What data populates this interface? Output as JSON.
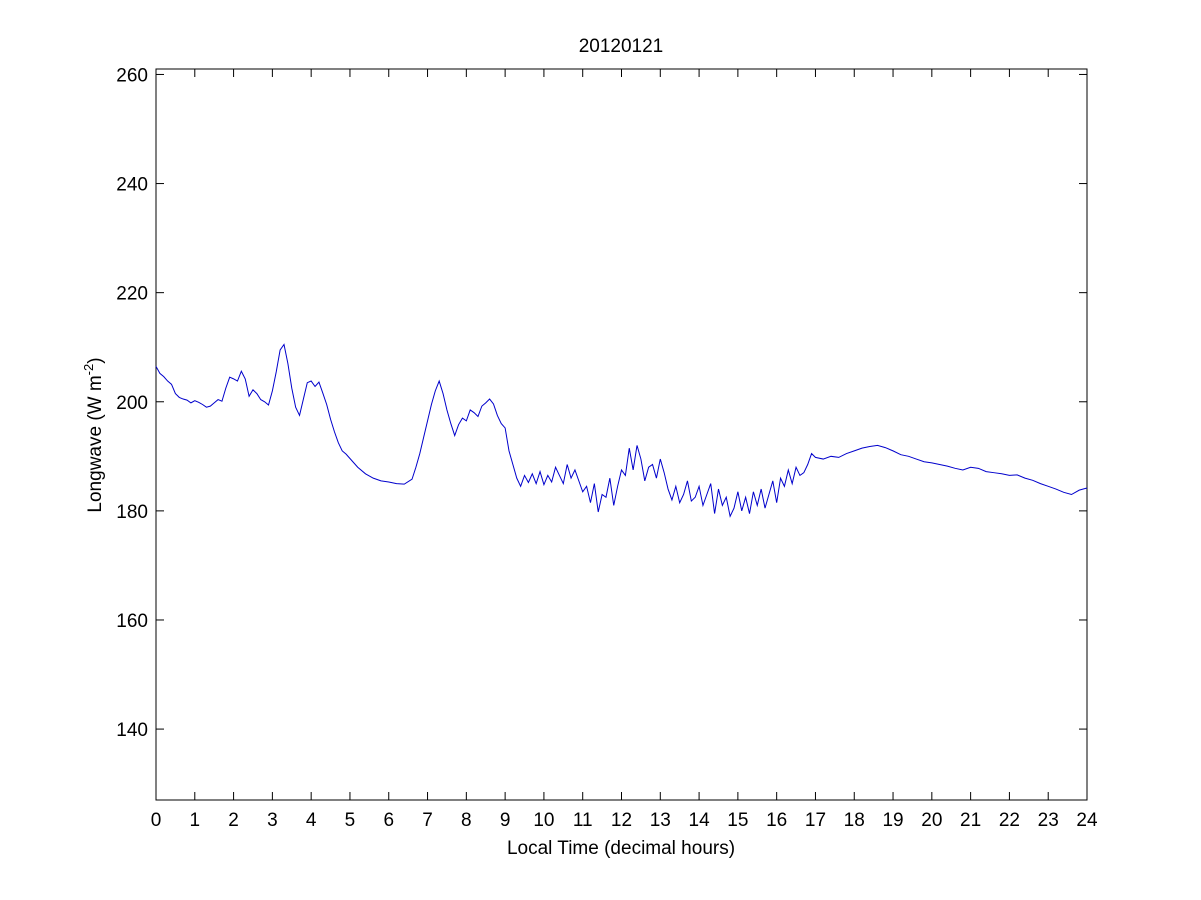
{
  "chart_data": {
    "type": "line",
    "title": "20120121",
    "xlabel": "Local Time (decimal hours)",
    "ylabel": {
      "prefix": "Longwave (W m",
      "sup": "-2",
      "suffix": ")"
    },
    "xlim": [
      0,
      24
    ],
    "ylim": [
      127,
      261
    ],
    "xticks": [
      0,
      1,
      2,
      3,
      4,
      5,
      6,
      7,
      8,
      9,
      10,
      11,
      12,
      13,
      14,
      15,
      16,
      17,
      18,
      19,
      20,
      21,
      22,
      23,
      24
    ],
    "yticks": [
      140,
      160,
      180,
      200,
      220,
      240,
      260
    ],
    "grid": false,
    "line_color": "#0000cc",
    "series": [
      {
        "x": [
          0,
          0.1,
          0.2,
          0.3,
          0.4,
          0.5,
          0.6,
          0.7,
          0.8,
          0.9,
          1.0,
          1.1,
          1.2,
          1.3,
          1.4,
          1.5,
          1.6,
          1.7,
          1.8,
          1.9,
          2.0,
          2.1,
          2.2,
          2.3,
          2.4,
          2.5,
          2.6,
          2.7,
          2.8,
          2.9,
          3.0,
          3.1,
          3.2,
          3.3,
          3.4,
          3.5,
          3.6,
          3.7,
          3.8,
          3.9,
          4.0,
          4.1,
          4.2,
          4.3,
          4.4,
          4.5,
          4.6,
          4.7,
          4.8,
          4.9,
          5.0,
          5.2,
          5.4,
          5.6,
          5.8,
          6.0,
          6.2,
          6.4,
          6.6,
          6.7,
          6.8,
          6.9,
          7.0,
          7.1,
          7.2,
          7.3,
          7.4,
          7.5,
          7.6,
          7.7,
          7.8,
          7.9,
          8.0,
          8.1,
          8.2,
          8.3,
          8.4,
          8.5,
          8.6,
          8.7,
          8.8,
          8.9,
          9.0,
          9.1,
          9.2,
          9.3,
          9.4,
          9.5,
          9.6,
          9.7,
          9.8,
          9.9,
          10.0,
          10.1,
          10.2,
          10.3,
          10.4,
          10.5,
          10.6,
          10.7,
          10.8,
          10.9,
          11.0,
          11.1,
          11.2,
          11.3,
          11.4,
          11.5,
          11.6,
          11.7,
          11.8,
          11.9,
          12.0,
          12.1,
          12.2,
          12.3,
          12.4,
          12.5,
          12.6,
          12.7,
          12.8,
          12.9,
          13.0,
          13.1,
          13.2,
          13.3,
          13.4,
          13.5,
          13.6,
          13.7,
          13.8,
          13.9,
          14.0,
          14.1,
          14.2,
          14.3,
          14.4,
          14.5,
          14.6,
          14.7,
          14.8,
          14.9,
          15.0,
          15.1,
          15.2,
          15.3,
          15.4,
          15.5,
          15.6,
          15.7,
          15.8,
          15.9,
          16.0,
          16.1,
          16.2,
          16.3,
          16.4,
          16.5,
          16.6,
          16.7,
          16.8,
          16.9,
          17.0,
          17.2,
          17.4,
          17.6,
          17.8,
          18.0,
          18.2,
          18.4,
          18.6,
          18.8,
          19.0,
          19.2,
          19.4,
          19.6,
          19.8,
          20.0,
          20.2,
          20.4,
          20.6,
          20.8,
          21.0,
          21.2,
          21.4,
          21.6,
          21.8,
          22.0,
          22.2,
          22.4,
          22.6,
          22.8,
          23.0,
          23.2,
          23.4,
          23.6,
          23.8,
          24.0
        ],
        "y": [
          206.5,
          205.2,
          204.6,
          203.8,
          203.2,
          201.5,
          200.8,
          200.5,
          200.3,
          199.8,
          200.2,
          199.9,
          199.5,
          199.0,
          199.2,
          199.8,
          200.4,
          200.1,
          202.5,
          204.5,
          204.2,
          203.8,
          205.6,
          204.2,
          201.0,
          202.2,
          201.5,
          200.4,
          200.0,
          199.4,
          202.0,
          205.5,
          209.5,
          210.5,
          207.0,
          202.5,
          199.0,
          197.5,
          200.5,
          203.5,
          203.8,
          202.8,
          203.6,
          201.6,
          199.5,
          196.8,
          194.5,
          192.5,
          191.0,
          190.4,
          189.6,
          188.0,
          186.8,
          186.0,
          185.5,
          185.3,
          185.0,
          184.9,
          185.8,
          188.0,
          190.5,
          193.5,
          196.5,
          199.5,
          202.0,
          203.8,
          201.5,
          198.5,
          196.0,
          193.8,
          195.8,
          197.0,
          196.5,
          198.5,
          198.0,
          197.3,
          199.2,
          199.8,
          200.5,
          199.6,
          197.5,
          196.0,
          195.2,
          191.0,
          188.5,
          186.0,
          184.5,
          186.5,
          185.2,
          186.8,
          185.0,
          187.2,
          184.8,
          186.5,
          185.3,
          188.0,
          186.5,
          185.0,
          188.5,
          186.0,
          187.5,
          185.5,
          183.5,
          184.5,
          181.5,
          185.0,
          179.8,
          183.0,
          182.5,
          186.0,
          181.0,
          184.5,
          187.5,
          186.5,
          191.5,
          187.5,
          192.0,
          189.5,
          185.5,
          188.0,
          188.5,
          186.0,
          189.5,
          187.0,
          184.0,
          182.0,
          184.5,
          181.5,
          183.0,
          185.5,
          181.8,
          182.5,
          184.5,
          181.0,
          183.0,
          185.0,
          179.5,
          184.0,
          181.0,
          182.5,
          179.0,
          180.5,
          183.5,
          180.0,
          182.5,
          179.5,
          183.5,
          181.0,
          184.0,
          180.5,
          183.0,
          185.5,
          181.5,
          186.0,
          184.5,
          187.5,
          185.0,
          188.0,
          186.5,
          187.0,
          188.5,
          190.5,
          189.8,
          189.5,
          190.0,
          189.8,
          190.5,
          191.0,
          191.5,
          191.8,
          192.0,
          191.6,
          191.0,
          190.3,
          190.0,
          189.5,
          189.0,
          188.8,
          188.5,
          188.2,
          187.8,
          187.5,
          188.0,
          187.8,
          187.2,
          187.0,
          186.8,
          186.5,
          186.6,
          186.0,
          185.6,
          185.0,
          184.5,
          184.0,
          183.4,
          183.0,
          183.8,
          184.2
        ]
      }
    ]
  }
}
